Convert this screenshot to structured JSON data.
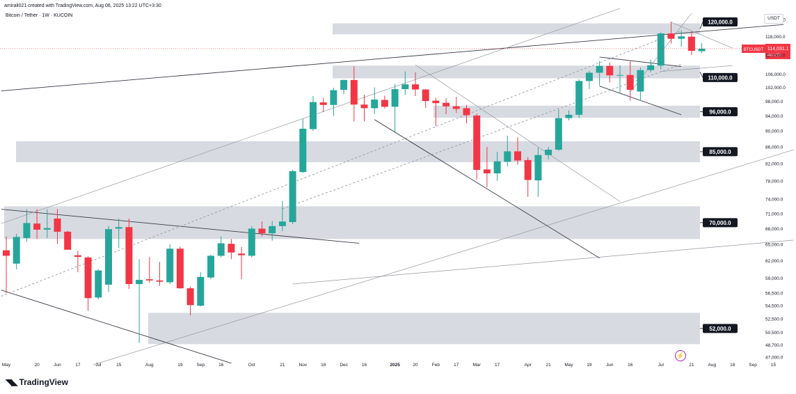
{
  "header": {
    "attribution": "amirali021 created with TradingView.com, Aug 06, 2025 13:22 UTC+3:30",
    "symbol": "Bitcoin / Tether · 1W · KUCOIN"
  },
  "currency_label": "USDT",
  "footer_brand": "TradingView",
  "colors": {
    "up": "#26a69a",
    "down": "#f23645",
    "zone": "#d1d4dc",
    "trendline": "#787b86",
    "price_tag": "#f23645"
  },
  "chart_data": {
    "type": "candlestick",
    "symbol": "BTCUSDT",
    "interval": "1W",
    "y_scale": "log",
    "ylim": [
      46000,
      128000
    ],
    "y_ticks": [
      "124,000.0",
      "118,000.0",
      "112,000.0",
      "106,000.0",
      "102,000.0",
      "98,000.0",
      "94,000.0",
      "90,000.0",
      "86,000.0",
      "82,000.0",
      "78,000.0",
      "74,000.0",
      "71,000.0",
      "68,000.0",
      "65,000.0",
      "62,000.0",
      "59,000.0",
      "56,500.0",
      "54,500.0",
      "52,500.0",
      "50,500.0",
      "48,700.0",
      "47,000.0"
    ],
    "x_labels": [
      {
        "label": "May",
        "index": 0
      },
      {
        "label": "20",
        "index": 3
      },
      {
        "label": "Jun",
        "index": 5
      },
      {
        "label": "17",
        "index": 7
      },
      {
        "label": "Jul",
        "index": 9
      },
      {
        "label": "15",
        "index": 11
      },
      {
        "label": "Aug",
        "index": 14
      },
      {
        "label": "19",
        "index": 17
      },
      {
        "label": "Sep",
        "index": 19
      },
      {
        "label": "16",
        "index": 21
      },
      {
        "label": "Oct",
        "index": 24
      },
      {
        "label": "21",
        "index": 27
      },
      {
        "label": "Nov",
        "index": 29
      },
      {
        "label": "18",
        "index": 31
      },
      {
        "label": "Dec",
        "index": 33
      },
      {
        "label": "16",
        "index": 35
      },
      {
        "label": "2025",
        "index": 38
      },
      {
        "label": "20",
        "index": 40
      },
      {
        "label": "Feb",
        "index": 42
      },
      {
        "label": "17",
        "index": 44
      },
      {
        "label": "Mar",
        "index": 46
      },
      {
        "label": "17",
        "index": 48
      },
      {
        "label": "Apr",
        "index": 51
      },
      {
        "label": "21",
        "index": 53
      },
      {
        "label": "May",
        "index": 55
      },
      {
        "label": "19",
        "index": 57
      },
      {
        "label": "Jun",
        "index": 59
      },
      {
        "label": "16",
        "index": 61
      },
      {
        "label": "Jul",
        "index": 64
      },
      {
        "label": "21",
        "index": 67
      },
      {
        "label": "Aug",
        "index": 69
      },
      {
        "label": "18",
        "index": 71
      },
      {
        "label": "Sep",
        "index": 73
      },
      {
        "label": "15",
        "index": 75
      }
    ],
    "candles": [
      {
        "o": 63900,
        "h": 66500,
        "l": 56500,
        "c": 62900
      },
      {
        "o": 61500,
        "h": 67000,
        "l": 60500,
        "c": 66400
      },
      {
        "o": 66200,
        "h": 71900,
        "l": 65500,
        "c": 69100
      },
      {
        "o": 69000,
        "h": 71900,
        "l": 66000,
        "c": 67800
      },
      {
        "o": 67800,
        "h": 71900,
        "l": 66200,
        "c": 68100
      },
      {
        "o": 70000,
        "h": 71900,
        "l": 65100,
        "c": 67400
      },
      {
        "o": 67400,
        "h": 67600,
        "l": 64200,
        "c": 64000
      },
      {
        "o": 63000,
        "h": 63800,
        "l": 60000,
        "c": 62700
      },
      {
        "o": 62600,
        "h": 62800,
        "l": 53700,
        "c": 55700
      },
      {
        "o": 55800,
        "h": 60500,
        "l": 55500,
        "c": 60300
      },
      {
        "o": 57900,
        "h": 68500,
        "l": 56700,
        "c": 67900
      },
      {
        "o": 68000,
        "h": 70000,
        "l": 64300,
        "c": 68300
      },
      {
        "o": 68300,
        "h": 70000,
        "l": 57200,
        "c": 58000
      },
      {
        "o": 58000,
        "h": 62300,
        "l": 49000,
        "c": 58700
      },
      {
        "o": 58800,
        "h": 62700,
        "l": 58200,
        "c": 58600
      },
      {
        "o": 58600,
        "h": 61800,
        "l": 57700,
        "c": 58400
      },
      {
        "o": 58300,
        "h": 65000,
        "l": 58000,
        "c": 64200
      },
      {
        "o": 64200,
        "h": 64600,
        "l": 57200,
        "c": 57300
      },
      {
        "o": 57300,
        "h": 57600,
        "l": 53000,
        "c": 54600
      },
      {
        "o": 54500,
        "h": 60000,
        "l": 54400,
        "c": 59200
      },
      {
        "o": 59100,
        "h": 63100,
        "l": 58800,
        "c": 62900
      },
      {
        "o": 62900,
        "h": 66500,
        "l": 62600,
        "c": 65200
      },
      {
        "o": 65100,
        "h": 66000,
        "l": 62300,
        "c": 63500
      },
      {
        "o": 63300,
        "h": 64500,
        "l": 58800,
        "c": 63000
      },
      {
        "o": 62900,
        "h": 68500,
        "l": 62600,
        "c": 68000
      },
      {
        "o": 68000,
        "h": 69400,
        "l": 66500,
        "c": 67100
      },
      {
        "o": 67100,
        "h": 69500,
        "l": 65700,
        "c": 68500
      },
      {
        "o": 68500,
        "h": 73600,
        "l": 67500,
        "c": 69400
      },
      {
        "o": 69300,
        "h": 80500,
        "l": 68900,
        "c": 80200
      },
      {
        "o": 80000,
        "h": 93200,
        "l": 79800,
        "c": 90600
      },
      {
        "o": 90500,
        "h": 99500,
        "l": 90000,
        "c": 97800
      },
      {
        "o": 97700,
        "h": 99000,
        "l": 95000,
        "c": 97000
      },
      {
        "o": 97000,
        "h": 101900,
        "l": 94000,
        "c": 101200
      },
      {
        "o": 101300,
        "h": 104300,
        "l": 100000,
        "c": 104200
      },
      {
        "o": 104200,
        "h": 108400,
        "l": 92500,
        "c": 97100
      },
      {
        "o": 97100,
        "h": 99900,
        "l": 92500,
        "c": 96100
      },
      {
        "o": 96100,
        "h": 102000,
        "l": 94500,
        "c": 98500
      },
      {
        "o": 98400,
        "h": 99600,
        "l": 96000,
        "c": 96500
      },
      {
        "o": 96500,
        "h": 103000,
        "l": 89500,
        "c": 101500
      },
      {
        "o": 101500,
        "h": 106800,
        "l": 99800,
        "c": 102900
      },
      {
        "o": 102900,
        "h": 106500,
        "l": 99500,
        "c": 101400
      },
      {
        "o": 101400,
        "h": 101500,
        "l": 96200,
        "c": 98100
      },
      {
        "o": 98200,
        "h": 99000,
        "l": 91300,
        "c": 97500
      },
      {
        "o": 97600,
        "h": 98900,
        "l": 94500,
        "c": 96600
      },
      {
        "o": 96600,
        "h": 99300,
        "l": 94800,
        "c": 95900
      },
      {
        "o": 96100,
        "h": 97000,
        "l": 92000,
        "c": 94200
      },
      {
        "o": 94100,
        "h": 94600,
        "l": 78300,
        "c": 80500
      },
      {
        "o": 80600,
        "h": 86000,
        "l": 76600,
        "c": 79700
      },
      {
        "o": 79700,
        "h": 84800,
        "l": 78000,
        "c": 82500
      },
      {
        "o": 82400,
        "h": 88800,
        "l": 81300,
        "c": 84900
      },
      {
        "o": 84900,
        "h": 88400,
        "l": 81700,
        "c": 82700
      },
      {
        "o": 82800,
        "h": 83500,
        "l": 74500,
        "c": 78200
      },
      {
        "o": 78100,
        "h": 85800,
        "l": 74500,
        "c": 84000
      },
      {
        "o": 84000,
        "h": 86000,
        "l": 83000,
        "c": 85300
      },
      {
        "o": 85300,
        "h": 95700,
        "l": 85000,
        "c": 93400
      },
      {
        "o": 93400,
        "h": 95500,
        "l": 92800,
        "c": 94300
      },
      {
        "o": 94300,
        "h": 104400,
        "l": 93400,
        "c": 103900
      },
      {
        "o": 103900,
        "h": 107000,
        "l": 101500,
        "c": 106400
      },
      {
        "o": 106400,
        "h": 110000,
        "l": 102600,
        "c": 108500
      },
      {
        "o": 108500,
        "h": 109600,
        "l": 103500,
        "c": 105600
      },
      {
        "o": 105600,
        "h": 108700,
        "l": 100500,
        "c": 105700
      },
      {
        "o": 105700,
        "h": 110000,
        "l": 98200,
        "c": 101300
      },
      {
        "o": 100800,
        "h": 108000,
        "l": 98200,
        "c": 107200
      },
      {
        "o": 107200,
        "h": 110500,
        "l": 106500,
        "c": 108700
      },
      {
        "o": 108600,
        "h": 119500,
        "l": 107400,
        "c": 119100
      },
      {
        "o": 119100,
        "h": 123200,
        "l": 115700,
        "c": 117300
      },
      {
        "o": 117300,
        "h": 120200,
        "l": 114600,
        "c": 118100
      },
      {
        "o": 118000,
        "h": 119800,
        "l": 111900,
        "c": 113300
      },
      {
        "o": 113200,
        "h": 115800,
        "l": 112600,
        "c": 114000
      }
    ],
    "horizontal_zones": [
      {
        "label": "120,000.0",
        "low": 118800,
        "high": 122600
      },
      {
        "label": "110,000.0",
        "low": 104700,
        "high": 108600
      },
      {
        "label": "96,000.0",
        "low": 93500,
        "high": 96800
      },
      {
        "label": "85,000.0",
        "low": 82300,
        "high": 87400
      },
      {
        "label": "70,000.0",
        "low": 66000,
        "high": 72500
      },
      {
        "label": "52,000.0",
        "low": 48800,
        "high": 53400
      }
    ],
    "trendlines": [
      {
        "from": [
          -0.5,
          71900
        ],
        "to": [
          34.5,
          65200
        ]
      },
      {
        "from": [
          -0.5,
          57000
        ],
        "to": [
          22,
          46200
        ]
      },
      {
        "from": [
          -0.5,
          101000
        ],
        "to": [
          76,
          122200
        ]
      },
      {
        "from": [
          -0.5,
          69000
        ],
        "to": [
          60,
          128000
        ],
        "style": "thin"
      },
      {
        "from": [
          8.5,
          46000
        ],
        "to": [
          77,
          85300
        ],
        "style": "thin"
      },
      {
        "from": [
          28,
          58000
        ],
        "to": [
          77,
          65800
        ],
        "style": "thin"
      },
      {
        "from": [
          -0.5,
          56000
        ],
        "to": [
          66,
          120000
        ],
        "style": "dashed"
      },
      {
        "from": [
          27,
          72000
        ],
        "to": [
          66,
          109000
        ],
        "style": "dashed"
      },
      {
        "from": [
          36,
          93000
        ],
        "to": [
          58,
          62500
        ]
      },
      {
        "from": [
          40,
          108800
        ],
        "to": [
          60,
          73500
        ],
        "style": "thin"
      },
      {
        "from": [
          58,
          111300
        ],
        "to": [
          66,
          108300
        ]
      },
      {
        "from": [
          58,
          102400
        ],
        "to": [
          66,
          94300
        ]
      },
      {
        "from": [
          61,
          100600
        ],
        "to": [
          67,
          126200
        ],
        "style": "thin"
      },
      {
        "from": [
          65,
          123000
        ],
        "to": [
          71,
          114200
        ],
        "style": "thin"
      },
      {
        "from": [
          64,
          106800
        ],
        "to": [
          71,
          108600
        ],
        "style": "thin"
      }
    ],
    "current_price": {
      "value": 114000,
      "label": "BTCUSDT",
      "price": "114,031.1",
      "countdown": "4d 15h"
    }
  }
}
